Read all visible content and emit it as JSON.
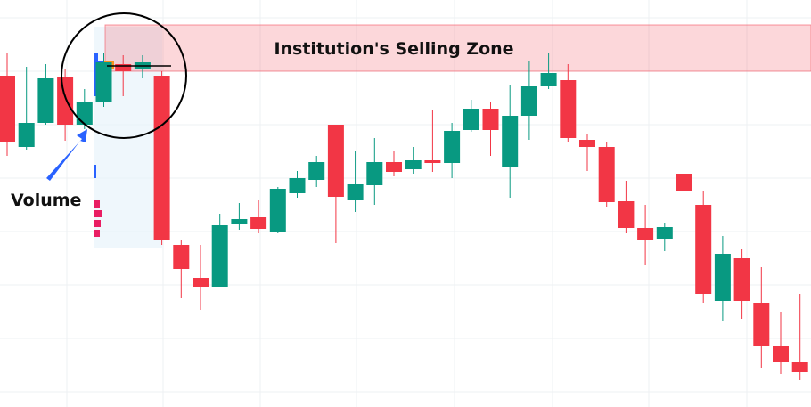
{
  "chart_data": {
    "type": "candlestick",
    "ylim": [
      0,
      457
    ],
    "up_color": "#089981",
    "down_color": "#f23645",
    "open": [
      372,
      292,
      319,
      371,
      317,
      342,
      385,
      379,
      372,
      182,
      145,
      135,
      205,
      213,
      197,
      240,
      255,
      317,
      232,
      249,
      275,
      267,
      277,
      274,
      311,
      335,
      269,
      327,
      360,
      367,
      300,
      292,
      231,
      201,
      189,
      262,
      227,
      119,
      167,
      117,
      69,
      50
    ],
    "high": [
      397,
      382,
      385,
      379,
      357,
      397,
      395,
      395,
      377,
      187,
      182,
      217,
      229,
      232,
      247,
      265,
      282,
      317,
      287,
      302,
      287,
      292,
      334,
      319,
      345,
      342,
      362,
      389,
      397,
      385,
      307,
      297,
      254,
      227,
      207,
      279,
      242,
      192,
      177,
      157,
      107,
      127
    ],
    "low": [
      282,
      289,
      317,
      299,
      312,
      337,
      349,
      369,
      182,
      122,
      109,
      135,
      199,
      195,
      195,
      235,
      247,
      184,
      219,
      227,
      259,
      262,
      264,
      257,
      309,
      282,
      235,
      300,
      357,
      297,
      265,
      225,
      195,
      160,
      175,
      155,
      117,
      97,
      99,
      44,
      37,
      30
    ],
    "close": [
      297,
      319,
      369,
      317,
      342,
      387,
      377,
      387,
      187,
      155,
      135,
      204,
      211,
      200,
      245,
      257,
      275,
      236,
      250,
      275,
      264,
      277,
      274,
      310,
      335,
      311,
      327,
      360,
      375,
      302,
      292,
      230,
      201,
      187,
      202,
      243,
      127,
      172,
      119,
      69,
      50,
      39
    ],
    "zone": {
      "label": "Institution's Selling Zone",
      "range": [
        377,
        429
      ]
    },
    "annotation": "Volume"
  }
}
